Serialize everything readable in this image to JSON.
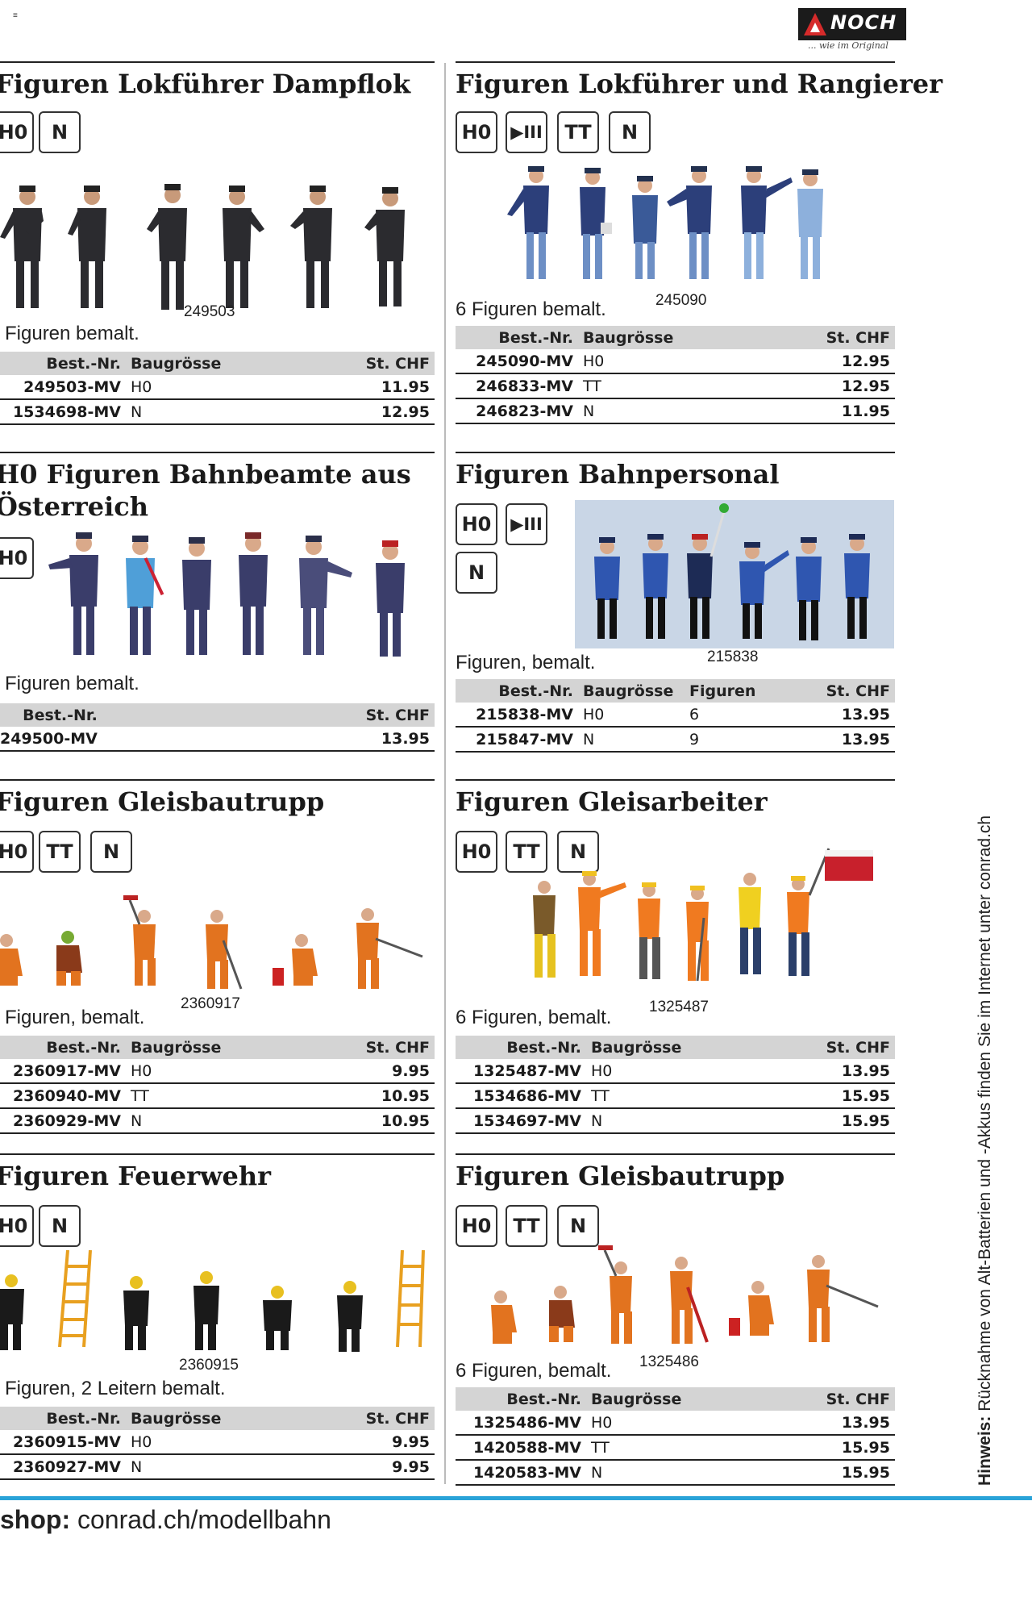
{
  "top_glyph": "≡",
  "brand": {
    "name": "NOCH",
    "tagline": "... wie im Original"
  },
  "sections": [
    {
      "title": "Figuren Lokführer Dampflok",
      "badges": [
        "H0",
        "N"
      ],
      "caption": "Figuren bemalt.",
      "artnum": "249503",
      "headers": [
        "Best.-Nr.",
        "Baugrösse",
        "St. CHF"
      ],
      "rows": [
        [
          "249503-MV",
          "H0",
          "11.95"
        ],
        [
          "1534698-MV",
          "N",
          "12.95"
        ]
      ]
    },
    {
      "title": "Figuren Lokführer und Rangierer",
      "badges": [
        "H0",
        "▶III",
        "TT",
        "N"
      ],
      "caption": "6 Figuren bemalt.",
      "artnum": "245090",
      "headers": [
        "Best.-Nr.",
        "Baugrösse",
        "St. CHF"
      ],
      "rows": [
        [
          "245090-MV",
          "H0",
          "12.95"
        ],
        [
          "246833-MV",
          "TT",
          "12.95"
        ],
        [
          "246823-MV",
          "N",
          "11.95"
        ]
      ]
    },
    {
      "title_line1": "H0 Figuren Bahnbeamte aus",
      "title_line2": "Österreich",
      "badges": [
        "H0"
      ],
      "caption": "Figuren bemalt.",
      "headers": [
        "Best.-Nr.",
        "St. CHF"
      ],
      "rows": [
        [
          "249500-MV",
          "13.95"
        ]
      ]
    },
    {
      "title": "Figuren Bahnpersonal",
      "badges": [
        "H0",
        "▶III",
        "N"
      ],
      "caption": "Figuren, bemalt.",
      "artnum": "215838",
      "headers": [
        "Best.-Nr.",
        "Baugrösse",
        "Figuren",
        "St. CHF"
      ],
      "rows": [
        [
          "215838-MV",
          "H0",
          "6",
          "13.95"
        ],
        [
          "215847-MV",
          "N",
          "9",
          "13.95"
        ]
      ]
    },
    {
      "title": "Figuren Gleisbautrupp",
      "badges": [
        "H0",
        "TT",
        "N"
      ],
      "caption": "Figuren, bemalt.",
      "artnum": "2360917",
      "headers": [
        "Best.-Nr.",
        "Baugrösse",
        "St. CHF"
      ],
      "rows": [
        [
          "2360917-MV",
          "H0",
          "9.95"
        ],
        [
          "2360940-MV",
          "TT",
          "10.95"
        ],
        [
          "2360929-MV",
          "N",
          "10.95"
        ]
      ]
    },
    {
      "title": "Figuren Gleisarbeiter",
      "badges": [
        "H0",
        "TT",
        "N"
      ],
      "caption": "6 Figuren, bemalt.",
      "artnum": "1325487",
      "headers": [
        "Best.-Nr.",
        "Baugrösse",
        "St. CHF"
      ],
      "rows": [
        [
          "1325487-MV",
          "H0",
          "13.95"
        ],
        [
          "1534686-MV",
          "TT",
          "15.95"
        ],
        [
          "1534697-MV",
          "N",
          "15.95"
        ]
      ]
    },
    {
      "title": "Figuren Feuerwehr",
      "badges": [
        "H0",
        "N"
      ],
      "caption": "Figuren, 2 Leitern bemalt.",
      "artnum": "2360915",
      "headers": [
        "Best.-Nr.",
        "Baugrösse",
        "St. CHF"
      ],
      "rows": [
        [
          "2360915-MV",
          "H0",
          "9.95"
        ],
        [
          "2360927-MV",
          "N",
          "9.95"
        ]
      ]
    },
    {
      "title": "Figuren Gleisbautrupp",
      "badges": [
        "H0",
        "TT",
        "N"
      ],
      "caption": "6 Figuren, bemalt.",
      "artnum": "1325486",
      "headers": [
        "Best.-Nr.",
        "Baugrösse",
        "St. CHF"
      ],
      "rows": [
        [
          "1325486-MV",
          "H0",
          "13.95"
        ],
        [
          "1420588-MV",
          "TT",
          "15.95"
        ],
        [
          "1420583-MV",
          "N",
          "15.95"
        ]
      ]
    }
  ],
  "hint": {
    "label": "Hinweis:",
    "text": "Rücknahme von Alt-Batterien und -Akkus finden Sie im Internet unter conrad.ch"
  },
  "footer": {
    "label": "shop:",
    "url": "conrad.ch/modellbahn"
  },
  "colors": {
    "accent_rule": "#2aa3d8",
    "table_header": "#d4d4d4",
    "logo_red": "#d62b2b"
  }
}
